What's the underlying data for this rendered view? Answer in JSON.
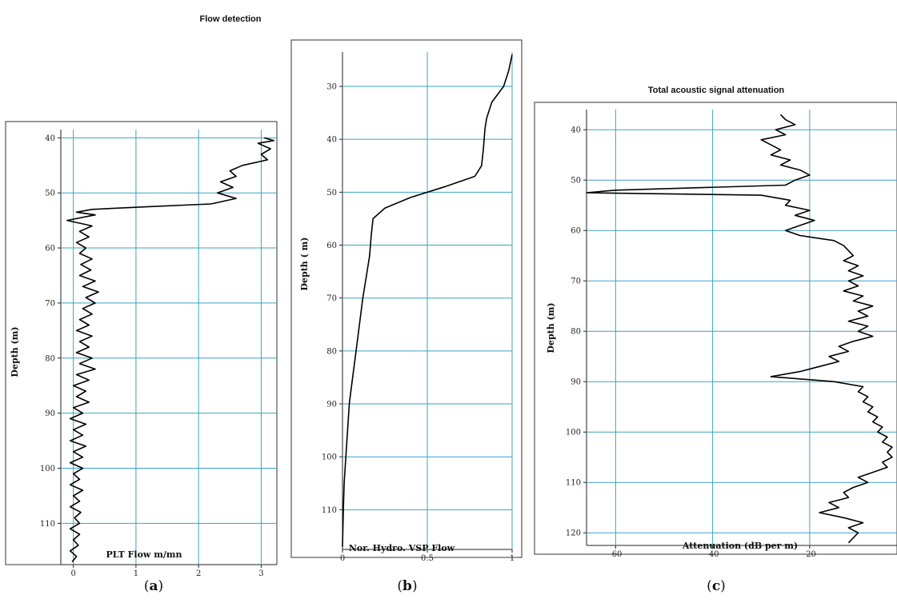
{
  "figure": {
    "titles": {
      "a": "Flow detection",
      "c": "Total acoustic signal attenuation"
    },
    "captions": [
      "a",
      "b",
      "c"
    ]
  },
  "chart_data": [
    {
      "type": "line",
      "panel": "a",
      "title": "",
      "xlabel": "PLT Flow  m/mn",
      "ylabel": "Depth (m)",
      "xlim": [
        -0.2,
        3.25
      ],
      "ylim": [
        117.5,
        38.5
      ],
      "y_inverted": true,
      "grid": true,
      "xticks": [
        "0",
        "1",
        "2",
        "3"
      ],
      "yticks": [
        "40",
        "50",
        "60",
        "70",
        "80",
        "90",
        "100",
        "110"
      ],
      "series": [
        {
          "color": "#000000",
          "points": [
            [
              3.05,
              40
            ],
            [
              3.2,
              40.5
            ],
            [
              2.95,
              41
            ],
            [
              3.15,
              42
            ],
            [
              3.0,
              43
            ],
            [
              3.1,
              44
            ],
            [
              2.7,
              45
            ],
            [
              2.5,
              46
            ],
            [
              2.6,
              47
            ],
            [
              2.35,
              48
            ],
            [
              2.55,
              49
            ],
            [
              2.3,
              50
            ],
            [
              2.6,
              51
            ],
            [
              2.2,
              52
            ],
            [
              1.2,
              52.5
            ],
            [
              0.3,
              53
            ],
            [
              0.05,
              53.5
            ],
            [
              0.35,
              54
            ],
            [
              -0.1,
              55
            ],
            [
              0.3,
              56
            ],
            [
              0.1,
              57
            ],
            [
              0.25,
              58
            ],
            [
              0.05,
              59
            ],
            [
              0.2,
              60
            ],
            [
              0.1,
              61
            ],
            [
              0.3,
              62
            ],
            [
              0.12,
              63
            ],
            [
              0.28,
              64
            ],
            [
              0.1,
              65
            ],
            [
              0.35,
              66
            ],
            [
              0.15,
              67
            ],
            [
              0.4,
              68
            ],
            [
              0.2,
              69
            ],
            [
              0.35,
              70
            ],
            [
              0.15,
              71
            ],
            [
              0.3,
              72
            ],
            [
              0.1,
              73
            ],
            [
              0.25,
              74
            ],
            [
              0.05,
              75
            ],
            [
              0.3,
              76
            ],
            [
              0.1,
              77
            ],
            [
              0.25,
              78
            ],
            [
              0.05,
              79
            ],
            [
              0.3,
              80
            ],
            [
              0.1,
              81
            ],
            [
              0.35,
              82
            ],
            [
              0.05,
              83
            ],
            [
              0.25,
              84
            ],
            [
              0.0,
              85
            ],
            [
              0.2,
              86
            ],
            [
              0.05,
              87
            ],
            [
              0.25,
              88
            ],
            [
              0.0,
              89
            ],
            [
              0.15,
              90
            ],
            [
              -0.05,
              91
            ],
            [
              0.2,
              92
            ],
            [
              0.0,
              93
            ],
            [
              0.15,
              94
            ],
            [
              -0.05,
              95
            ],
            [
              0.2,
              96
            ],
            [
              0.0,
              97
            ],
            [
              0.15,
              98
            ],
            [
              -0.05,
              99
            ],
            [
              0.15,
              100
            ],
            [
              0.0,
              101
            ],
            [
              0.1,
              102
            ],
            [
              -0.05,
              103
            ],
            [
              0.15,
              104
            ],
            [
              0.0,
              105
            ],
            [
              0.1,
              106
            ],
            [
              -0.05,
              107
            ],
            [
              0.12,
              108
            ],
            [
              0.02,
              109
            ],
            [
              0.1,
              110
            ],
            [
              -0.05,
              111
            ],
            [
              0.1,
              112
            ],
            [
              0.0,
              113
            ],
            [
              0.08,
              114
            ],
            [
              -0.05,
              115
            ],
            [
              0.05,
              116
            ],
            [
              -0.02,
              117
            ]
          ]
        }
      ]
    },
    {
      "type": "line",
      "panel": "b",
      "title": "",
      "xlabel": "Nor. Hydro. VSP Flow",
      "ylabel": "Depth ( m)",
      "xlim": [
        0,
        1
      ],
      "ylim": [
        117.5,
        23.5
      ],
      "y_inverted": true,
      "grid": true,
      "xticks": [
        "0",
        "0.5",
        "1"
      ],
      "yticks": [
        "30",
        "40",
        "50",
        "60",
        "70",
        "80",
        "90",
        "100",
        "110"
      ],
      "series": [
        {
          "color": "#000000",
          "points": [
            [
              1.0,
              24
            ],
            [
              0.98,
              27
            ],
            [
              0.95,
              30
            ],
            [
              0.88,
              33
            ],
            [
              0.85,
              36
            ],
            [
              0.84,
              38
            ],
            [
              0.83,
              42
            ],
            [
              0.82,
              45
            ],
            [
              0.78,
              47
            ],
            [
              0.6,
              49
            ],
            [
              0.4,
              51
            ],
            [
              0.25,
              53
            ],
            [
              0.18,
              55
            ],
            [
              0.17,
              58
            ],
            [
              0.16,
              62
            ],
            [
              0.14,
              66
            ],
            [
              0.12,
              70
            ],
            [
              0.1,
              75
            ],
            [
              0.08,
              80
            ],
            [
              0.06,
              85
            ],
            [
              0.04,
              90
            ],
            [
              0.03,
              95
            ],
            [
              0.02,
              100
            ],
            [
              0.01,
              105
            ],
            [
              0.005,
              110
            ],
            [
              0.0,
              117
            ]
          ]
        }
      ]
    },
    {
      "type": "line",
      "panel": "c",
      "title": "",
      "xlabel": "Attenuation (dB per m)",
      "ylabel": "Depth (m)",
      "xlim": [
        -66,
        -2
      ],
      "ylim": [
        122.5,
        36
      ],
      "y_inverted": true,
      "grid": true,
      "xticks": [
        "-60",
        "-40",
        "-20"
      ],
      "yticks": [
        "40",
        "50",
        "60",
        "70",
        "80",
        "90",
        "100",
        "110",
        "120"
      ],
      "series": [
        {
          "color": "#000000",
          "points": [
            [
              -26,
              37
            ],
            [
              -25,
              38
            ],
            [
              -23,
              39
            ],
            [
              -27,
              40
            ],
            [
              -25,
              41
            ],
            [
              -30,
              42
            ],
            [
              -28,
              43
            ],
            [
              -26,
              44
            ],
            [
              -28,
              45
            ],
            [
              -24,
              46
            ],
            [
              -26,
              47
            ],
            [
              -22,
              48
            ],
            [
              -20,
              49
            ],
            [
              -23,
              50
            ],
            [
              -25,
              51
            ],
            [
              -60,
              52
            ],
            [
              -66,
              52.5
            ],
            [
              -30,
              53
            ],
            [
              -24,
              54
            ],
            [
              -25,
              55
            ],
            [
              -20,
              56
            ],
            [
              -23,
              57
            ],
            [
              -19,
              58
            ],
            [
              -22,
              59
            ],
            [
              -25,
              60
            ],
            [
              -22,
              61
            ],
            [
              -15,
              62
            ],
            [
              -13,
              63
            ],
            [
              -12,
              64
            ],
            [
              -11,
              65
            ],
            [
              -13,
              66
            ],
            [
              -10,
              67
            ],
            [
              -12,
              68
            ],
            [
              -9,
              69
            ],
            [
              -12,
              70
            ],
            [
              -10,
              71
            ],
            [
              -13,
              72
            ],
            [
              -9,
              73
            ],
            [
              -11,
              74
            ],
            [
              -7,
              75
            ],
            [
              -10,
              76
            ],
            [
              -8,
              77
            ],
            [
              -12,
              78
            ],
            [
              -8,
              79
            ],
            [
              -10,
              80
            ],
            [
              -7,
              81
            ],
            [
              -11,
              82
            ],
            [
              -14,
              83
            ],
            [
              -12,
              84
            ],
            [
              -16,
              85
            ],
            [
              -14,
              86
            ],
            [
              -18,
              87
            ],
            [
              -22,
              88
            ],
            [
              -28,
              89
            ],
            [
              -15,
              90
            ],
            [
              -9,
              91
            ],
            [
              -10,
              92
            ],
            [
              -8,
              93
            ],
            [
              -9,
              94
            ],
            [
              -7,
              95
            ],
            [
              -8,
              96
            ],
            [
              -6,
              97
            ],
            [
              -7,
              98
            ],
            [
              -5,
              99
            ],
            [
              -6,
              100
            ],
            [
              -4,
              101
            ],
            [
              -5,
              102
            ],
            [
              -3,
              103
            ],
            [
              -4,
              104
            ],
            [
              -3,
              105
            ],
            [
              -5,
              106
            ],
            [
              -4,
              107
            ],
            [
              -7,
              108
            ],
            [
              -10,
              109
            ],
            [
              -8,
              110
            ],
            [
              -11,
              111
            ],
            [
              -13,
              112
            ],
            [
              -12,
              113
            ],
            [
              -16,
              114
            ],
            [
              -14,
              115
            ],
            [
              -18,
              116
            ],
            [
              -13,
              117
            ],
            [
              -9,
              118
            ],
            [
              -12,
              119
            ],
            [
              -10,
              120
            ],
            [
              -11,
              121
            ],
            [
              -12,
              122
            ]
          ]
        }
      ]
    }
  ]
}
